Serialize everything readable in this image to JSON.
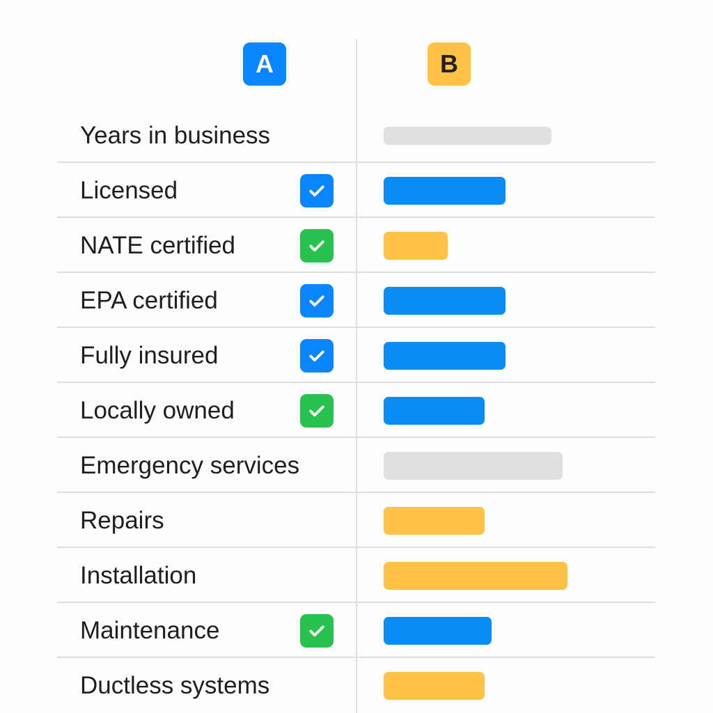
{
  "header": {
    "col_a": {
      "label": "A",
      "color": "#0a84ff",
      "icon": "letter-a-badge"
    },
    "col_b": {
      "label": "B",
      "color": "#ffc247",
      "icon": "letter-b-badge"
    }
  },
  "colors": {
    "blue": "#0a8cf5",
    "yellow": "#ffc247",
    "gray": "#e0e0e0",
    "check_blue": "#0a84ff",
    "check_green": "#28c24e"
  },
  "rows": [
    {
      "label": "Years in business",
      "check": null,
      "bar_color": "gray",
      "bar_level": 0.73
    },
    {
      "label": "Licensed",
      "check": "blue",
      "bar_color": "blue",
      "bar_level": 0.53
    },
    {
      "label": "NATE certified",
      "check": "green",
      "bar_color": "yellow",
      "bar_level": 0.28
    },
    {
      "label": "EPA certified",
      "check": "blue",
      "bar_color": "blue",
      "bar_level": 0.53
    },
    {
      "label": "Fully insured",
      "check": "blue",
      "bar_color": "blue",
      "bar_level": 0.53
    },
    {
      "label": "Locally owned",
      "check": "green",
      "bar_color": "blue",
      "bar_level": 0.44
    },
    {
      "label": "Emergency services",
      "check": null,
      "bar_color": "gray",
      "bar_level": 0.78
    },
    {
      "label": "Repairs",
      "check": null,
      "bar_color": "yellow",
      "bar_level": 0.44
    },
    {
      "label": "Installation",
      "check": null,
      "bar_color": "yellow",
      "bar_level": 0.8
    },
    {
      "label": "Maintenance",
      "check": "green",
      "bar_color": "blue",
      "bar_level": 0.47
    },
    {
      "label": "Ductless systems",
      "check": null,
      "bar_color": "yellow",
      "bar_level": 0.44
    }
  ]
}
